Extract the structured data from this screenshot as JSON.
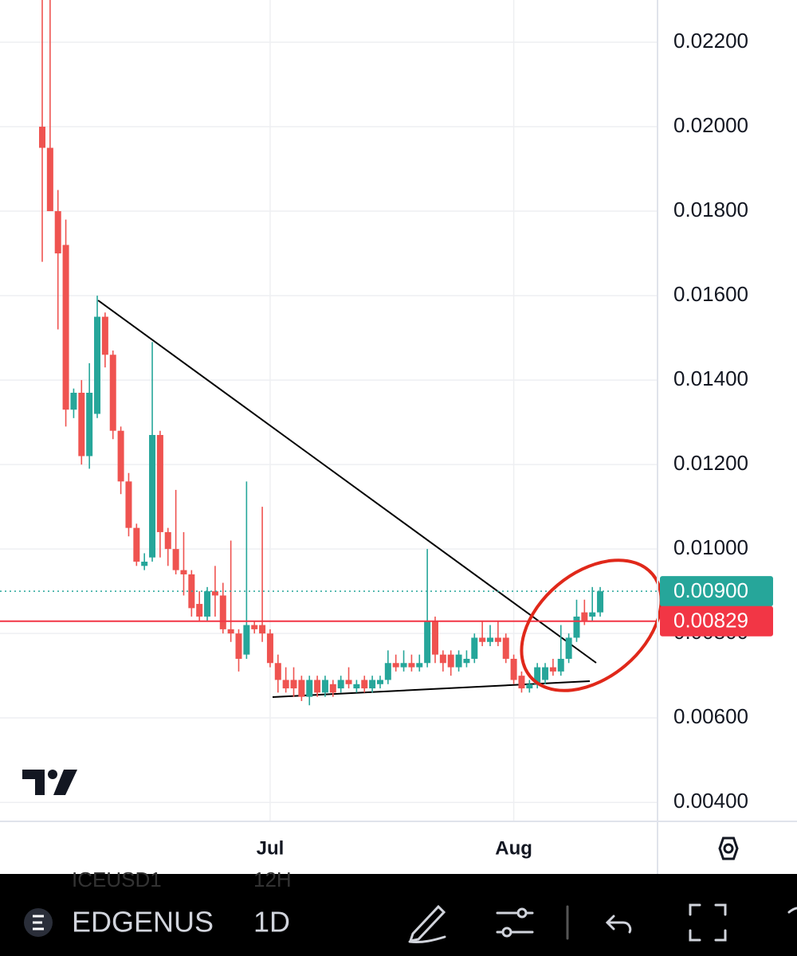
{
  "chart_data": {
    "type": "candlestick",
    "categories": [
      null,
      null,
      null,
      null,
      null,
      null,
      null,
      null,
      null,
      null,
      null,
      null,
      null,
      null,
      null,
      null,
      null,
      null,
      null,
      null,
      null,
      null,
      null,
      null,
      null,
      null,
      null,
      null,
      null,
      "Jul",
      null,
      null,
      null,
      null,
      null,
      null,
      null,
      null,
      null,
      null,
      null,
      null,
      null,
      null,
      null,
      null,
      null,
      null,
      null,
      null,
      null,
      null,
      null,
      null,
      null,
      null,
      null,
      null,
      null,
      null,
      "Aug",
      null,
      null,
      null,
      null,
      null,
      null,
      null,
      null,
      null,
      null,
      null
    ],
    "open": [
      0.02,
      0.0195,
      0.018,
      0.0172,
      0.0133,
      0.0137,
      0.0122,
      0.0132,
      0.0155,
      0.0146,
      0.0128,
      0.0116,
      0.0105,
      0.0096,
      0.0098,
      0.0127,
      0.0104,
      0.01,
      0.0095,
      0.0094,
      0.0087,
      0.0084,
      0.009,
      0.0089,
      0.0081,
      0.008,
      0.0075,
      0.0082,
      0.0082,
      0.008,
      0.0073,
      0.0069,
      0.0069,
      0.0069,
      0.0065,
      0.0069,
      0.0066,
      0.0068,
      0.0067,
      0.0069,
      0.0067,
      0.0069,
      0.0067,
      0.0068,
      0.0069,
      0.0073,
      0.0072,
      0.0073,
      0.0072,
      0.0073,
      0.0083,
      0.0075,
      0.0075,
      0.0072,
      0.0073,
      0.0074,
      0.0079,
      0.0078,
      0.0079,
      0.0079,
      0.0074,
      0.007,
      0.0067,
      0.0068,
      0.0069,
      0.0072,
      0.0071,
      0.0074,
      0.0079,
      0.0085,
      0.0084,
      0.0085
    ],
    "high": [
      0.023,
      0.023,
      0.0185,
      0.0178,
      0.0138,
      0.014,
      0.0144,
      0.016,
      0.0156,
      0.0147,
      0.0129,
      0.0118,
      0.0106,
      0.0099,
      0.0149,
      0.0128,
      0.0105,
      0.0114,
      0.0104,
      0.0095,
      0.009,
      0.0091,
      0.0096,
      0.0092,
      0.0102,
      0.0081,
      0.0116,
      0.0083,
      0.011,
      0.0081,
      0.0075,
      0.0072,
      0.0072,
      0.007,
      0.007,
      0.007,
      0.007,
      0.0069,
      0.007,
      0.0072,
      0.0069,
      0.007,
      0.007,
      0.007,
      0.0076,
      0.0075,
      0.0076,
      0.0075,
      0.0075,
      0.01,
      0.0084,
      0.0076,
      0.0076,
      0.0076,
      0.0076,
      0.008,
      0.0083,
      0.0082,
      0.0083,
      0.008,
      0.0075,
      0.0071,
      0.0069,
      0.0073,
      0.0073,
      0.0074,
      0.0082,
      0.008,
      0.0088,
      0.0088,
      0.0091,
      0.0091
    ],
    "low": [
      0.0168,
      0.018,
      0.0152,
      0.0129,
      0.0131,
      0.012,
      0.0119,
      0.0131,
      0.0143,
      0.0126,
      0.0113,
      0.0103,
      0.0096,
      0.0095,
      0.0097,
      0.0098,
      0.0096,
      0.0094,
      0.0089,
      0.0084,
      0.0083,
      0.0083,
      0.0084,
      0.008,
      0.0078,
      0.0071,
      0.0074,
      0.008,
      0.0078,
      0.0072,
      0.0066,
      0.0066,
      0.0065,
      0.0064,
      0.0063,
      0.0065,
      0.0065,
      0.0065,
      0.0066,
      0.0067,
      0.0066,
      0.0066,
      0.0066,
      0.0067,
      0.0068,
      0.0071,
      0.0071,
      0.0071,
      0.0071,
      0.0072,
      0.0073,
      0.0071,
      0.007,
      0.0071,
      0.0072,
      0.0073,
      0.0077,
      0.0077,
      0.0077,
      0.0073,
      0.0068,
      0.0066,
      0.0066,
      0.0067,
      0.0068,
      0.007,
      0.007,
      0.0073,
      0.0078,
      0.0082,
      0.0083,
      0.0084
    ],
    "close": [
      0.0195,
      0.018,
      0.017,
      0.0133,
      0.0137,
      0.0122,
      0.0137,
      0.0155,
      0.0146,
      0.0128,
      0.0116,
      0.0105,
      0.0097,
      0.0097,
      0.0127,
      0.0104,
      0.01,
      0.0095,
      0.0094,
      0.0086,
      0.0084,
      0.009,
      0.0089,
      0.0081,
      0.008,
      0.0074,
      0.0082,
      0.0081,
      0.008,
      0.0073,
      0.0069,
      0.0067,
      0.0067,
      0.0065,
      0.0069,
      0.0066,
      0.0069,
      0.0066,
      0.0069,
      0.0068,
      0.0068,
      0.0067,
      0.0069,
      0.0069,
      0.0073,
      0.0072,
      0.0073,
      0.0072,
      0.0073,
      0.0083,
      0.0075,
      0.0073,
      0.0072,
      0.0075,
      0.0074,
      0.0079,
      0.0078,
      0.0079,
      0.0078,
      0.0074,
      0.0069,
      0.0067,
      0.0068,
      0.0072,
      0.0072,
      0.0071,
      0.0074,
      0.0079,
      0.0084,
      0.0083,
      0.0085,
      0.009
    ],
    "up_color": "#26a69a",
    "down_color": "#ef5350",
    "ylim": [
      0.00357,
      0.023
    ],
    "yticks": [
      {
        "value": 0.004,
        "label": "0.00400"
      },
      {
        "value": 0.006,
        "label": "0.00600"
      },
      {
        "value": 0.008,
        "label": "0.00800"
      },
      {
        "value": 0.01,
        "label": "0.01000"
      },
      {
        "value": 0.012,
        "label": "0.01200"
      },
      {
        "value": 0.014,
        "label": "0.01400"
      },
      {
        "value": 0.016,
        "label": "0.01600"
      },
      {
        "value": 0.018,
        "label": "0.01800"
      },
      {
        "value": 0.02,
        "label": "0.02000"
      },
      {
        "value": 0.022,
        "label": "0.02200"
      }
    ],
    "grid": true,
    "price_lines": [
      {
        "value": 0.009,
        "label": "0.00900",
        "color": "#26a69a",
        "style": "dotted"
      },
      {
        "value": 0.00829,
        "label": "0.00829",
        "color": "#f23645",
        "style": "solid"
      }
    ]
  },
  "toolbar": {
    "symbol": "EDGENUS",
    "interval": "1D",
    "ghost_symbol": "ICEUSD1",
    "ghost_interval": "12H"
  }
}
